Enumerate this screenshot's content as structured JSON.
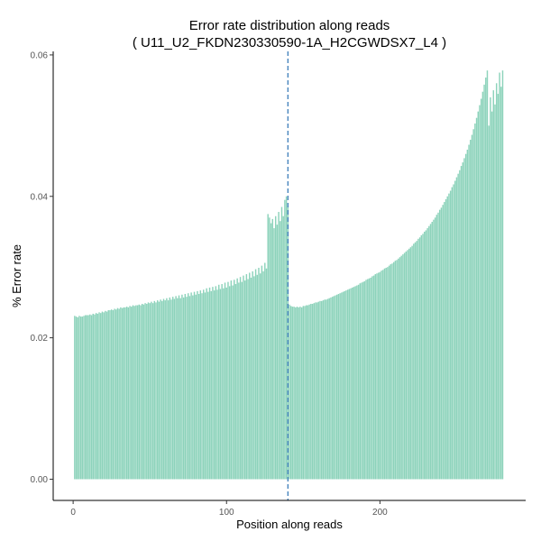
{
  "chart_data": {
    "type": "bar",
    "title": "Error rate distribution along reads",
    "subtitle": "( U11_U2_FKDN230330590-1A_H2CGWDSX7_L4 )",
    "xlabel": "Position along reads",
    "ylabel": "% Error rate",
    "xlim": [
      -13,
      295
    ],
    "ylim": [
      -0.003,
      0.0605
    ],
    "x_ticks": [
      0,
      100,
      200
    ],
    "x_tick_labels": [
      "0",
      "100",
      "200"
    ],
    "y_ticks": [
      0.0,
      0.02,
      0.04,
      0.06
    ],
    "y_tick_labels": [
      "0.00",
      "0.02",
      "0.04",
      "0.06"
    ],
    "vline_x": 140,
    "grid": false,
    "legend": "none",
    "colors": {
      "bar": "#8dd3bb",
      "vline": "#2e74b5",
      "axis": "#000000"
    },
    "read1_x_range": [
      1,
      140
    ],
    "read1_values": [
      0.0231,
      0.023,
      0.0229,
      0.0231,
      0.023,
      0.023,
      0.0231,
      0.0232,
      0.0232,
      0.0232,
      0.0233,
      0.0232,
      0.0234,
      0.0233,
      0.0235,
      0.0234,
      0.0236,
      0.0235,
      0.0237,
      0.0236,
      0.0238,
      0.0237,
      0.0239,
      0.0239,
      0.024,
      0.0239,
      0.0241,
      0.024,
      0.0242,
      0.0241,
      0.0243,
      0.0242,
      0.0243,
      0.0243,
      0.0244,
      0.0243,
      0.0245,
      0.0244,
      0.0246,
      0.0245,
      0.0246,
      0.0246,
      0.0247,
      0.0246,
      0.0248,
      0.0247,
      0.0249,
      0.0248,
      0.025,
      0.0249,
      0.0251,
      0.0249,
      0.0252,
      0.025,
      0.0253,
      0.0251,
      0.0254,
      0.0252,
      0.0255,
      0.0253,
      0.0256,
      0.0253,
      0.0257,
      0.0254,
      0.0258,
      0.0255,
      0.0259,
      0.0256,
      0.026,
      0.0256,
      0.0261,
      0.0257,
      0.0262,
      0.0258,
      0.0263,
      0.0259,
      0.0264,
      0.026,
      0.0265,
      0.0261,
      0.0266,
      0.0262,
      0.0267,
      0.0263,
      0.0268,
      0.0264,
      0.027,
      0.0265,
      0.0271,
      0.0266,
      0.0272,
      0.0267,
      0.0273,
      0.0268,
      0.0275,
      0.0269,
      0.0276,
      0.027,
      0.0278,
      0.0271,
      0.0279,
      0.0273,
      0.0281,
      0.0274,
      0.0282,
      0.0276,
      0.0284,
      0.0278,
      0.0286,
      0.0279,
      0.0288,
      0.0281,
      0.029,
      0.0283,
      0.0292,
      0.0285,
      0.0294,
      0.0287,
      0.0297,
      0.0289,
      0.0299,
      0.0291,
      0.0302,
      0.0294,
      0.0306,
      0.0298,
      0.0375,
      0.037,
      0.0362,
      0.0368,
      0.0355,
      0.0372,
      0.036,
      0.0378,
      0.0365,
      0.0385,
      0.0372,
      0.0395,
      0.04,
      0.0385
    ],
    "read2_x_range": [
      141,
      280
    ],
    "read2_values": [
      0.0247,
      0.0245,
      0.0244,
      0.0244,
      0.0243,
      0.0244,
      0.0243,
      0.0244,
      0.0243,
      0.0245,
      0.0245,
      0.0246,
      0.0246,
      0.0247,
      0.0248,
      0.0248,
      0.0249,
      0.025,
      0.025,
      0.0251,
      0.0252,
      0.0252,
      0.0253,
      0.0254,
      0.0254,
      0.0255,
      0.0256,
      0.0257,
      0.0258,
      0.0259,
      0.026,
      0.0261,
      0.0262,
      0.0263,
      0.0264,
      0.0265,
      0.0266,
      0.0267,
      0.0268,
      0.0269,
      0.027,
      0.0271,
      0.0272,
      0.0273,
      0.0274,
      0.0275,
      0.0277,
      0.0278,
      0.0279,
      0.028,
      0.0282,
      0.0283,
      0.0284,
      0.0285,
      0.0287,
      0.0288,
      0.029,
      0.0291,
      0.0292,
      0.0293,
      0.0295,
      0.0296,
      0.0298,
      0.0299,
      0.03,
      0.0302,
      0.0304,
      0.0305,
      0.0307,
      0.0309,
      0.031,
      0.0312,
      0.0314,
      0.0316,
      0.0318,
      0.032,
      0.0322,
      0.0324,
      0.0326,
      0.0328,
      0.033,
      0.0333,
      0.0335,
      0.0337,
      0.034,
      0.0342,
      0.0345,
      0.0347,
      0.035,
      0.0352,
      0.0355,
      0.0358,
      0.0361,
      0.0364,
      0.0367,
      0.037,
      0.0374,
      0.0377,
      0.0381,
      0.0384,
      0.0388,
      0.0392,
      0.0396,
      0.04,
      0.0404,
      0.0408,
      0.0413,
      0.0417,
      0.0422,
      0.0427,
      0.0432,
      0.0437,
      0.0443,
      0.0448,
      0.0454,
      0.046,
      0.0466,
      0.0473,
      0.048,
      0.0487,
      0.0495,
      0.0503,
      0.0511,
      0.052,
      0.0529,
      0.0538,
      0.0548,
      0.0558,
      0.0568,
      0.0578,
      0.05,
      0.054,
      0.052,
      0.055,
      0.053,
      0.056,
      0.0545,
      0.0575,
      0.0555,
      0.0578
    ]
  }
}
